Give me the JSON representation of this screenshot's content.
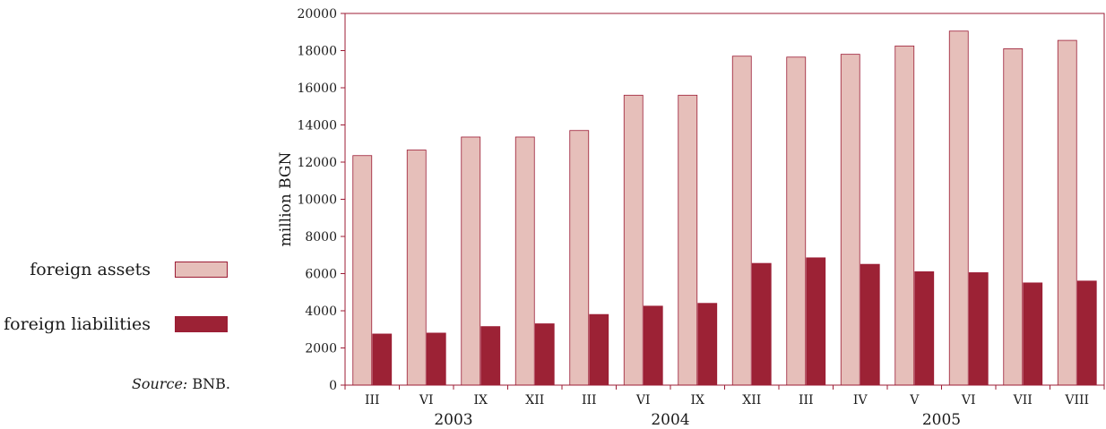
{
  "chart_data": {
    "type": "bar",
    "ylabel": "million BGN",
    "ylim": [
      0,
      20000
    ],
    "yticks": [
      "0",
      "2000",
      "4000",
      "6000",
      "8000",
      "10000",
      "12000",
      "14000",
      "16000",
      "18000",
      "20000"
    ],
    "categories": [
      "III",
      "VI",
      "IX",
      "XII",
      "III",
      "VI",
      "IX",
      "XII",
      "III",
      "IV",
      "V",
      "VI",
      "VII",
      "VIII"
    ],
    "years": [
      {
        "label": "2003",
        "from": 0,
        "to": 3
      },
      {
        "label": "2004",
        "from": 4,
        "to": 7
      },
      {
        "label": "2005",
        "from": 8,
        "to": 13
      }
    ],
    "series": [
      {
        "name": "foreign assets",
        "color": "#e6bfba",
        "values": [
          12350,
          12650,
          13350,
          13350,
          13700,
          15600,
          15600,
          17700,
          17650,
          17800,
          18250,
          19050,
          18100,
          18550
        ]
      },
      {
        "name": "foreign liabilities",
        "color": "#9c2235",
        "values": [
          2750,
          2800,
          3150,
          3300,
          3800,
          4250,
          4400,
          6550,
          6850,
          6500,
          6100,
          6050,
          5500,
          5600
        ]
      }
    ],
    "grid": false,
    "legend_position": "left",
    "axis_color": "#9c1c35"
  },
  "legend": {
    "assets_label": "foreign assets",
    "liabilities_label": "foreign liabilities"
  },
  "source": {
    "prefix": "Source:",
    "text": " BNB."
  }
}
